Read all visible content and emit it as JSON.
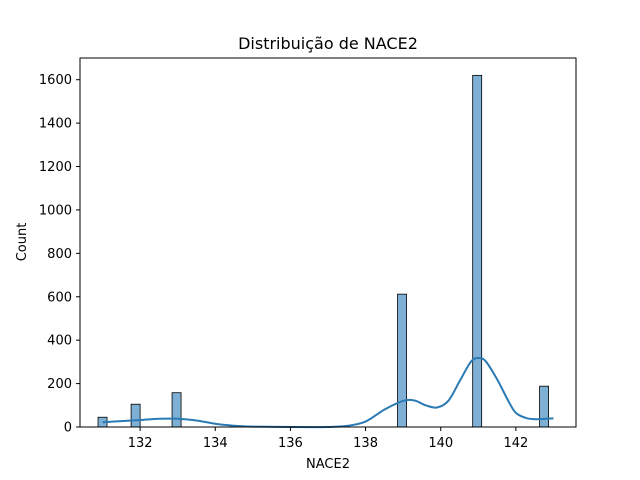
{
  "chart_data": {
    "type": "bar",
    "title": "Distribuição de NACE2",
    "xlabel": "NACE2",
    "ylabel": "Count",
    "xlim": [
      130.4,
      143.6
    ],
    "ylim": [
      0,
      1700
    ],
    "xticks": [
      132,
      134,
      136,
      138,
      140,
      142
    ],
    "yticks": [
      0,
      200,
      400,
      600,
      800,
      1000,
      1200,
      1400,
      1600
    ],
    "bin_width": 0.24,
    "bins": [
      {
        "x": 131.0,
        "count": 45
      },
      {
        "x": 131.88,
        "count": 105
      },
      {
        "x": 132.97,
        "count": 158
      },
      {
        "x": 138.97,
        "count": 612
      },
      {
        "x": 140.97,
        "count": 1620
      },
      {
        "x": 142.75,
        "count": 188
      }
    ],
    "kde": {
      "x": [
        131.0,
        131.5,
        132.0,
        132.5,
        133.0,
        133.5,
        134.0,
        134.5,
        135.0,
        136.0,
        137.0,
        137.5,
        138.0,
        138.5,
        139.0,
        139.3,
        139.6,
        139.9,
        140.2,
        140.5,
        140.8,
        141.0,
        141.2,
        141.5,
        141.8,
        142.0,
        142.3,
        142.6,
        143.0
      ],
      "y": [
        22,
        27,
        32,
        38,
        38,
        30,
        15,
        6,
        2,
        0,
        0,
        5,
        25,
        80,
        120,
        122,
        100,
        90,
        120,
        210,
        300,
        318,
        302,
        220,
        120,
        65,
        40,
        36,
        40
      ]
    },
    "bar_color": "#7eb0d5",
    "bar_edge_color": "#000000",
    "kde_color": "#2a7ab5",
    "grid": false,
    "legend": "none"
  }
}
